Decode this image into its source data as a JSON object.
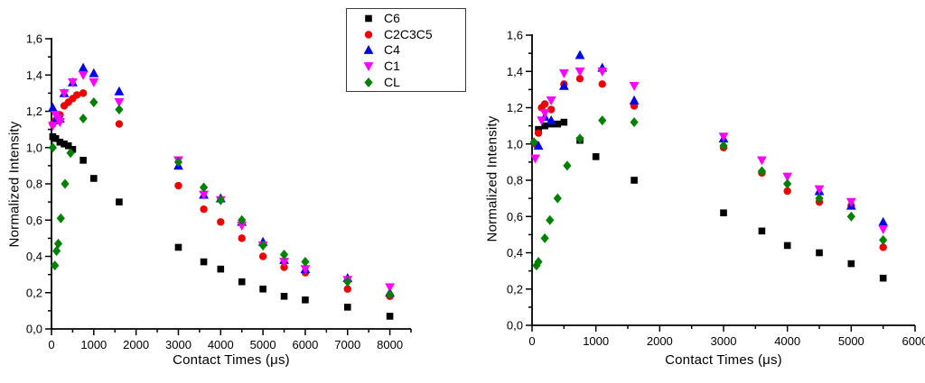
{
  "figure": {
    "background": "#ffffff"
  },
  "chart_data": [
    {
      "type": "scatter",
      "title": "",
      "xlabel": "Contact Times (μs)",
      "ylabel": "Normalized Intensity",
      "xlim": [
        0,
        8500
      ],
      "ylim": [
        0,
        1.6
      ],
      "x_major": 1000,
      "x_minor": 500,
      "y_major": 0.2,
      "y_minor": 0.1,
      "grid": false,
      "tick_decimal_separator": ",",
      "legend_position": "outside-top-right",
      "legend_visible": true,
      "series": [
        {
          "name": "C6",
          "marker": "square",
          "color": "#000000",
          "points": [
            [
              30,
              1.06
            ],
            [
              100,
              1.05
            ],
            [
              200,
              1.03
            ],
            [
              300,
              1.02
            ],
            [
              400,
              1.01
            ],
            [
              500,
              0.99
            ],
            [
              750,
              0.93
            ],
            [
              1000,
              0.83
            ],
            [
              1600,
              0.7
            ],
            [
              3000,
              0.45
            ],
            [
              3600,
              0.37
            ],
            [
              4000,
              0.33
            ],
            [
              4500,
              0.26
            ],
            [
              5000,
              0.22
            ],
            [
              5500,
              0.18
            ],
            [
              6000,
              0.16
            ],
            [
              7000,
              0.12
            ],
            [
              8000,
              0.07
            ]
          ]
        },
        {
          "name": "C2C3C5",
          "marker": "circle",
          "color": "#ee0000",
          "points": [
            [
              30,
              1.13
            ],
            [
              100,
              1.15
            ],
            [
              200,
              1.18
            ],
            [
              300,
              1.23
            ],
            [
              400,
              1.25
            ],
            [
              500,
              1.27
            ],
            [
              600,
              1.29
            ],
            [
              750,
              1.3
            ],
            [
              1600,
              1.13
            ],
            [
              3000,
              0.79
            ],
            [
              3600,
              0.66
            ],
            [
              4000,
              0.59
            ],
            [
              4500,
              0.5
            ],
            [
              5000,
              0.4
            ],
            [
              5500,
              0.34
            ],
            [
              6000,
              0.31
            ],
            [
              7000,
              0.22
            ],
            [
              8000,
              0.18
            ]
          ]
        },
        {
          "name": "C4",
          "marker": "triangle-up",
          "color": "#0000ee",
          "points": [
            [
              30,
              1.22
            ],
            [
              100,
              1.15
            ],
            [
              200,
              1.16
            ],
            [
              300,
              1.3
            ],
            [
              500,
              1.36
            ],
            [
              750,
              1.44
            ],
            [
              1000,
              1.41
            ],
            [
              1600,
              1.31
            ],
            [
              3000,
              0.9
            ],
            [
              3600,
              0.74
            ],
            [
              4000,
              0.72
            ],
            [
              4500,
              0.59
            ],
            [
              5000,
              0.48
            ],
            [
              5500,
              0.38
            ],
            [
              6000,
              0.33
            ],
            [
              7000,
              0.28
            ],
            [
              8000,
              0.2
            ]
          ]
        },
        {
          "name": "C1",
          "marker": "triangle-down",
          "color": "#ff00ff",
          "points": [
            [
              30,
              1.12
            ],
            [
              100,
              1.18
            ],
            [
              150,
              1.16
            ],
            [
              200,
              1.14
            ],
            [
              300,
              1.3
            ],
            [
              500,
              1.36
            ],
            [
              750,
              1.4
            ],
            [
              1000,
              1.36
            ],
            [
              1600,
              1.25
            ],
            [
              3000,
              0.93
            ],
            [
              3600,
              0.74
            ],
            [
              4000,
              0.71
            ],
            [
              4500,
              0.57
            ],
            [
              5000,
              0.46
            ],
            [
              5500,
              0.37
            ],
            [
              6000,
              0.33
            ],
            [
              7000,
              0.27
            ],
            [
              8000,
              0.23
            ]
          ]
        },
        {
          "name": "CL",
          "marker": "diamond",
          "color": "#008000",
          "points": [
            [
              30,
              1.0
            ],
            [
              80,
              0.35
            ],
            [
              120,
              0.43
            ],
            [
              160,
              0.47
            ],
            [
              220,
              0.61
            ],
            [
              320,
              0.8
            ],
            [
              450,
              0.97
            ],
            [
              750,
              1.16
            ],
            [
              1000,
              1.25
            ],
            [
              1600,
              1.21
            ],
            [
              3000,
              0.92
            ],
            [
              3600,
              0.78
            ],
            [
              4000,
              0.71
            ],
            [
              4500,
              0.6
            ],
            [
              5000,
              0.46
            ],
            [
              5500,
              0.41
            ],
            [
              6000,
              0.37
            ],
            [
              7000,
              0.26
            ],
            [
              8000,
              0.19
            ]
          ]
        }
      ]
    },
    {
      "type": "scatter",
      "title": "",
      "xlabel": "Contact Times (μs)",
      "ylabel": "Normalized Intensity",
      "xlim": [
        0,
        6000
      ],
      "ylim": [
        0,
        1.6
      ],
      "x_major": 1000,
      "x_minor": 500,
      "y_major": 0.2,
      "y_minor": 0.1,
      "grid": false,
      "tick_decimal_separator": ",",
      "legend_position": "none",
      "legend_visible": false,
      "series": [
        {
          "name": "C6",
          "marker": "square",
          "color": "#000000",
          "points": [
            [
              100,
              1.08
            ],
            [
              200,
              1.1
            ],
            [
              300,
              1.11
            ],
            [
              400,
              1.11
            ],
            [
              500,
              1.12
            ],
            [
              750,
              1.02
            ],
            [
              1000,
              0.93
            ],
            [
              1600,
              0.8
            ],
            [
              3000,
              0.62
            ],
            [
              3600,
              0.52
            ],
            [
              4000,
              0.44
            ],
            [
              4500,
              0.4
            ],
            [
              5000,
              0.34
            ],
            [
              5500,
              0.26
            ]
          ]
        },
        {
          "name": "C2C3C5",
          "marker": "circle",
          "color": "#ee0000",
          "points": [
            [
              50,
              1.0
            ],
            [
              100,
              1.06
            ],
            [
              150,
              1.2
            ],
            [
              200,
              1.22
            ],
            [
              300,
              1.19
            ],
            [
              500,
              1.33
            ],
            [
              750,
              1.36
            ],
            [
              1100,
              1.33
            ],
            [
              1600,
              1.21
            ],
            [
              3000,
              0.98
            ],
            [
              3600,
              0.84
            ],
            [
              4000,
              0.74
            ],
            [
              4500,
              0.68
            ],
            [
              5000,
              0.66
            ],
            [
              5500,
              0.43
            ]
          ]
        },
        {
          "name": "C4",
          "marker": "triangle-up",
          "color": "#0000ee",
          "points": [
            [
              100,
              0.99
            ],
            [
              200,
              1.15
            ],
            [
              300,
              1.13
            ],
            [
              500,
              1.32
            ],
            [
              750,
              1.49
            ],
            [
              1100,
              1.42
            ],
            [
              1600,
              1.24
            ],
            [
              3000,
              1.03
            ],
            [
              4500,
              0.74
            ],
            [
              5000,
              0.66
            ],
            [
              5500,
              0.57
            ]
          ]
        },
        {
          "name": "C1",
          "marker": "triangle-down",
          "color": "#ff00ff",
          "points": [
            [
              50,
              0.92
            ],
            [
              150,
              1.13
            ],
            [
              200,
              1.17
            ],
            [
              300,
              1.24
            ],
            [
              500,
              1.39
            ],
            [
              750,
              1.4
            ],
            [
              1100,
              1.4
            ],
            [
              1600,
              1.32
            ],
            [
              3000,
              1.04
            ],
            [
              3600,
              0.91
            ],
            [
              4000,
              0.82
            ],
            [
              4500,
              0.75
            ],
            [
              5000,
              0.68
            ],
            [
              5500,
              0.53
            ]
          ]
        },
        {
          "name": "CL",
          "marker": "diamond",
          "color": "#008000",
          "points": [
            [
              30,
              1.01
            ],
            [
              70,
              0.33
            ],
            [
              100,
              0.35
            ],
            [
              200,
              0.48
            ],
            [
              280,
              0.58
            ],
            [
              400,
              0.7
            ],
            [
              550,
              0.88
            ],
            [
              750,
              1.03
            ],
            [
              1100,
              1.13
            ],
            [
              1600,
              1.12
            ],
            [
              3000,
              0.99
            ],
            [
              3600,
              0.85
            ],
            [
              4000,
              0.78
            ],
            [
              4500,
              0.7
            ],
            [
              5000,
              0.6
            ],
            [
              5500,
              0.47
            ]
          ]
        }
      ]
    }
  ]
}
